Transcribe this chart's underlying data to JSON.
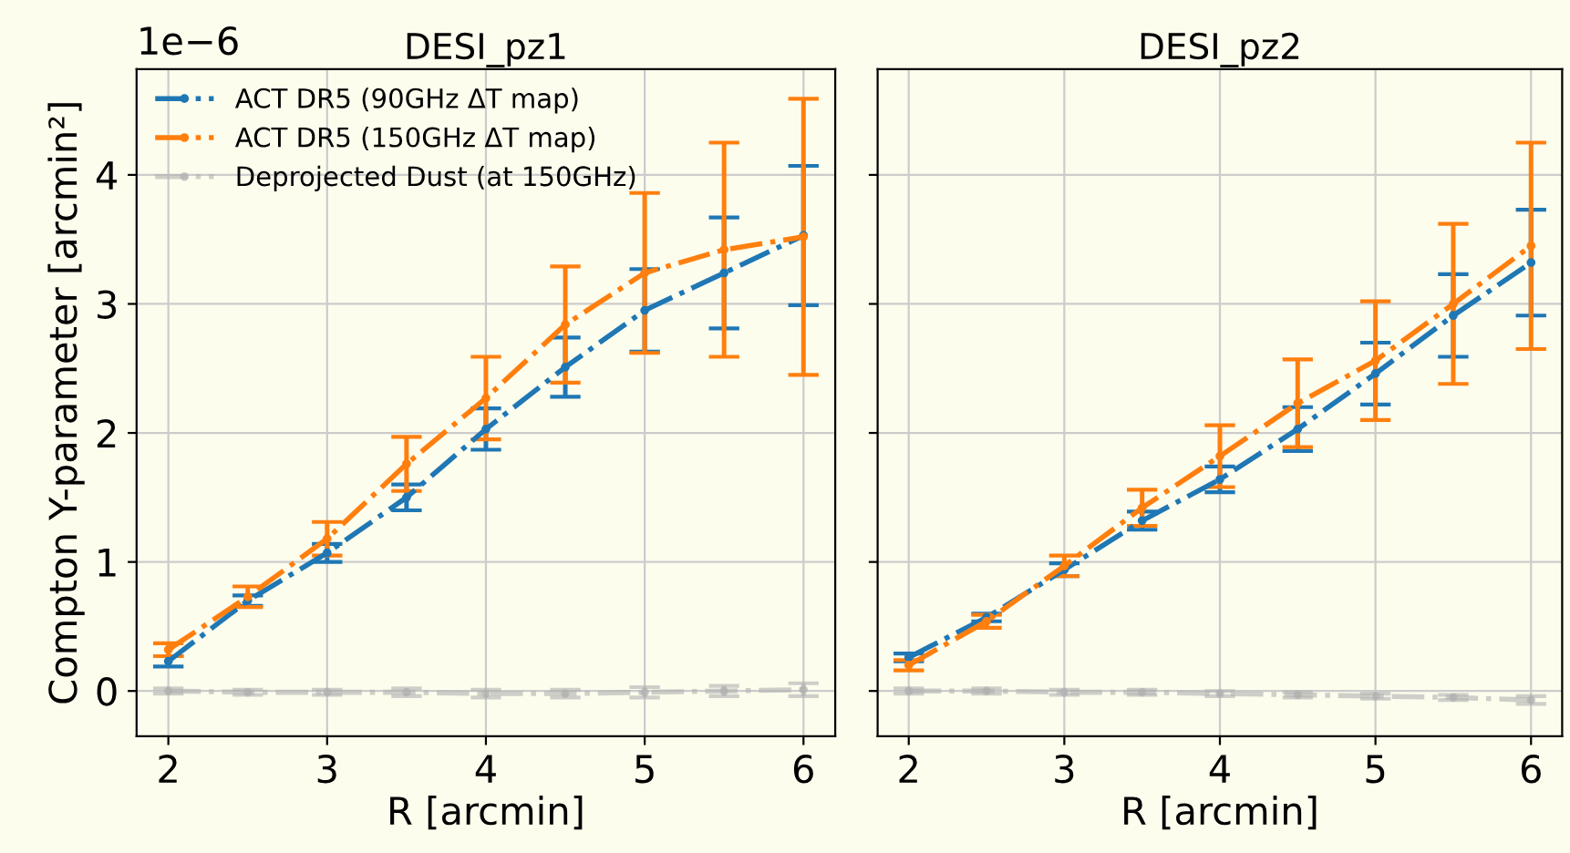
{
  "chart_data": [
    {
      "type": "line",
      "title": "DESI_pz1",
      "xlabel": "R [arcmin]",
      "ylabel": "Compton Y-parameter [arcmin²]",
      "annotations": [
        "1e−6"
      ],
      "marker": "circle",
      "x": [
        2,
        2.5,
        3,
        3.5,
        4,
        4.5,
        5,
        5.5,
        6
      ],
      "xlim": [
        1.8,
        6.2
      ],
      "xticks": [
        2,
        3,
        4,
        5,
        6
      ],
      "ylim": [
        -0.35,
        4.82
      ],
      "yticks": [
        0,
        1,
        2,
        3,
        4
      ],
      "grid": true,
      "legend": "top left",
      "line_style": "dashdot",
      "series": [
        {
          "name": "ACT DR5 (90GHz ΔT map)",
          "color": "#1f77b4",
          "values": [
            0.23,
            0.7,
            1.07,
            1.5,
            2.03,
            2.51,
            2.95,
            3.24,
            3.53
          ],
          "errors": [
            0.04,
            0.04,
            0.07,
            0.1,
            0.16,
            0.23,
            0.32,
            0.43,
            0.54
          ]
        },
        {
          "name": "ACT DR5 (150GHz ΔT map)",
          "color": "#ff7f0e",
          "values": [
            0.32,
            0.73,
            1.18,
            1.76,
            2.27,
            2.84,
            3.24,
            3.42,
            3.52
          ],
          "errors": [
            0.05,
            0.08,
            0.13,
            0.21,
            0.32,
            0.45,
            0.62,
            0.83,
            1.07
          ]
        },
        {
          "name": "Deprojected Dust (at 150GHz)",
          "color": "#b0b0b0",
          "values": [
            0,
            -0.01,
            -0.01,
            -0.01,
            -0.02,
            -0.02,
            -0.01,
            0,
            0.01
          ],
          "errors": [
            0.02,
            0.02,
            0.02,
            0.03,
            0.03,
            0.03,
            0.04,
            0.04,
            0.05
          ]
        }
      ]
    },
    {
      "type": "line",
      "title": "DESI_pz2",
      "xlabel": "R [arcmin]",
      "tick_labels": "x",
      "marker": "circle",
      "x": [
        2,
        2.5,
        3,
        3.5,
        4,
        4.5,
        5,
        5.5,
        6
      ],
      "xlim": [
        1.8,
        6.2
      ],
      "xticks": [
        2,
        3,
        4,
        5,
        6
      ],
      "ylim": [
        -0.35,
        4.82
      ],
      "yticks": [
        0,
        1,
        2,
        3,
        4
      ],
      "grid": true,
      "line_style": "dashdot",
      "series": [
        {
          "color": "#1f77b4",
          "values": [
            0.26,
            0.57,
            0.94,
            1.32,
            1.64,
            2.03,
            2.46,
            2.91,
            3.32
          ],
          "errors": [
            0.03,
            0.03,
            0.05,
            0.07,
            0.1,
            0.17,
            0.24,
            0.32,
            0.41
          ]
        },
        {
          "color": "#ff7f0e",
          "values": [
            0.2,
            0.54,
            0.97,
            1.42,
            1.82,
            2.23,
            2.56,
            3.0,
            3.45
          ],
          "errors": [
            0.04,
            0.05,
            0.08,
            0.14,
            0.24,
            0.34,
            0.46,
            0.62,
            0.8
          ]
        },
        {
          "color": "#b0b0b0",
          "values": [
            0,
            0,
            -0.01,
            -0.01,
            -0.02,
            -0.03,
            -0.04,
            -0.05,
            -0.07
          ],
          "errors": [
            0.02,
            0.02,
            0.02,
            0.02,
            0.02,
            0.02,
            0.02,
            0.02,
            0.03
          ]
        }
      ]
    }
  ]
}
